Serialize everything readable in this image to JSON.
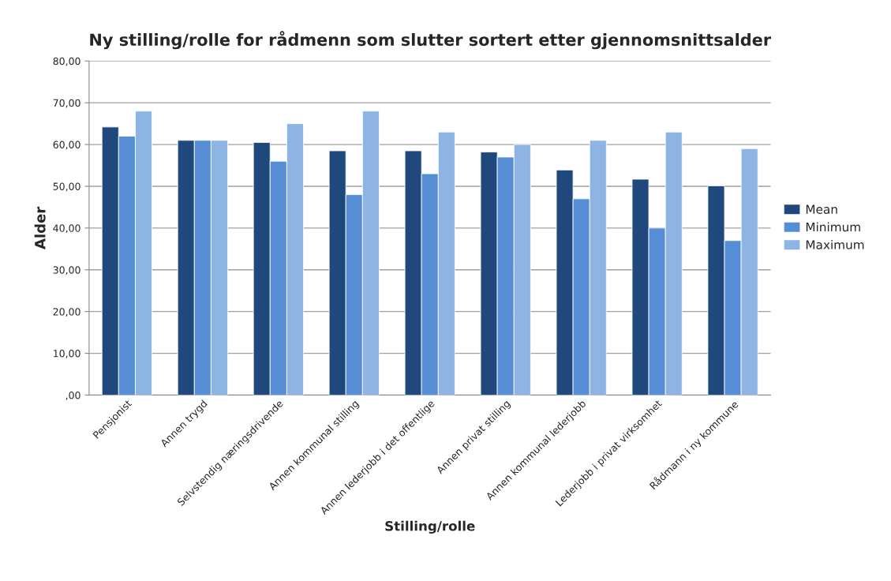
{
  "chart_data": {
    "type": "bar",
    "title": "Ny stilling/rolle for rådmenn som slutter sortert etter gjennomsnittsalder",
    "xlabel": "Stilling/rolle",
    "ylabel": "Alder",
    "categories": [
      "Pensjonist",
      "Annen trygd",
      "Selvstendig næringsdrivende",
      "Annen kommunal stilling",
      "Annen lederjobb i det offentlige",
      "Annen privat stilling",
      "Annen kommunal lederjobb",
      "Lederjobb i privat virksomhet",
      "Rådmann i ny kommune"
    ],
    "series": [
      {
        "name": "Mean",
        "color": "#1f497d",
        "values": [
          64.2,
          61.0,
          60.5,
          58.5,
          58.5,
          58.2,
          53.9,
          51.7,
          50.1
        ]
      },
      {
        "name": "Minimum",
        "color": "#558ed5",
        "values": [
          62,
          61,
          56,
          48,
          53,
          57,
          47,
          40,
          37
        ]
      },
      {
        "name": "Maximum",
        "color": "#8eb4e3",
        "values": [
          68,
          61,
          65,
          68,
          63,
          60,
          61,
          63,
          59
        ]
      }
    ],
    "ylim": [
      0,
      80
    ],
    "yticks": [
      {
        "value": 0,
        "label": ",00"
      },
      {
        "value": 10,
        "label": "10,00"
      },
      {
        "value": 20,
        "label": "20,00"
      },
      {
        "value": 30,
        "label": "30,00"
      },
      {
        "value": 40,
        "label": "40,00"
      },
      {
        "value": 50,
        "label": "50,00"
      },
      {
        "value": 60,
        "label": "60,00"
      },
      {
        "value": 70,
        "label": "70,00"
      },
      {
        "value": 80,
        "label": "80,00"
      }
    ],
    "grid": "y",
    "legend": "right"
  }
}
